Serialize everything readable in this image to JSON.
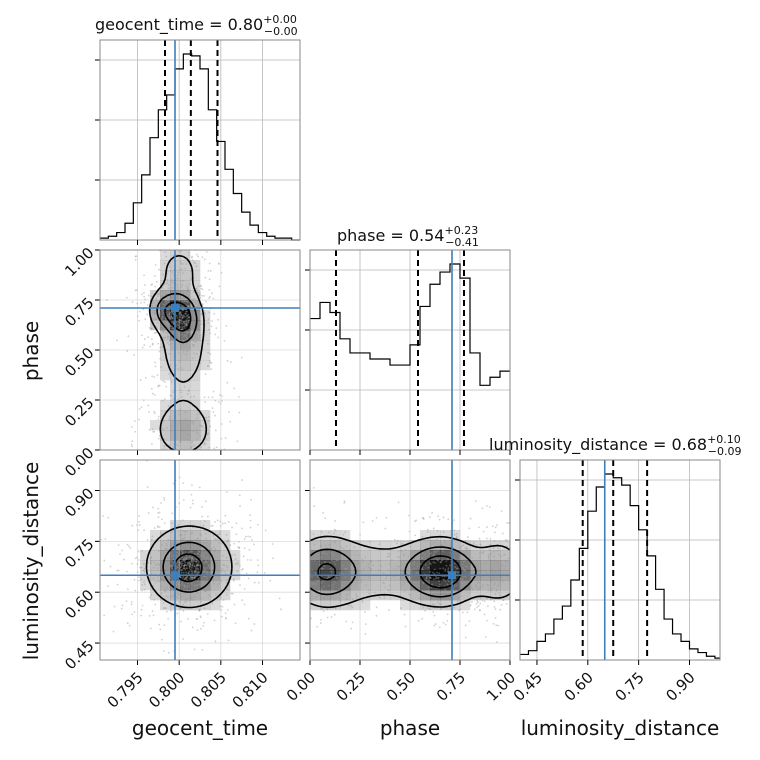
{
  "chart_data": {
    "type": "corner",
    "parameters": [
      "geocent_time",
      "phase",
      "luminosity_distance"
    ],
    "truths": {
      "geocent_time": 0.7995,
      "phase": 0.71,
      "luminosity_distance": 0.65
    },
    "titles": [
      {
        "name": "geocent_time",
        "value": "0.80",
        "upper": "+0.00",
        "lower": "−0.00"
      },
      {
        "name": "phase",
        "value": "0.54",
        "upper": "+0.23",
        "lower": "−0.41"
      },
      {
        "name": "luminosity_distance",
        "value": "0.68",
        "upper": "+0.10",
        "lower": "−0.09"
      }
    ],
    "axes": {
      "geocent_time": {
        "range": [
          0.7905,
          0.8145
        ],
        "ticks": [
          "0.795",
          "0.800",
          "0.805",
          "0.810"
        ]
      },
      "phase": {
        "range": [
          0.0,
          1.0
        ],
        "ticks": [
          "0.00",
          "0.25",
          "0.50",
          "0.75",
          "1.00"
        ]
      },
      "luminosity_distance": {
        "range": [
          0.4,
          0.99
        ],
        "ticks": [
          "0.45",
          "0.60",
          "0.75",
          "0.90"
        ]
      }
    },
    "marginals": {
      "geocent_time": {
        "edges": [
          0.7905,
          0.7915,
          0.7925,
          0.7935,
          0.7945,
          0.7955,
          0.7965,
          0.7975,
          0.7985,
          0.7995,
          0.8005,
          0.8015,
          0.8025,
          0.8035,
          0.8045,
          0.8055,
          0.8065,
          0.8075,
          0.8085,
          0.8095,
          0.8105,
          0.8115,
          0.8125,
          0.8135,
          0.8145
        ],
        "counts": [
          0.01,
          0.02,
          0.04,
          0.09,
          0.2,
          0.35,
          0.55,
          0.7,
          0.78,
          0.92,
          1.0,
          0.99,
          0.92,
          0.7,
          0.53,
          0.38,
          0.25,
          0.15,
          0.08,
          0.04,
          0.02,
          0.01,
          0.01,
          0.0
        ],
        "quantiles": [
          0.7983,
          0.8014,
          0.8046
        ]
      },
      "phase": {
        "edges": [
          0.0,
          0.05,
          0.1,
          0.15,
          0.2,
          0.25,
          0.3,
          0.35,
          0.4,
          0.45,
          0.5,
          0.55,
          0.6,
          0.65,
          0.7,
          0.75,
          0.8,
          0.85,
          0.9,
          0.95,
          1.0
        ],
        "counts": [
          0.65,
          0.73,
          0.68,
          0.55,
          0.48,
          0.48,
          0.45,
          0.45,
          0.42,
          0.42,
          0.52,
          0.71,
          0.82,
          0.88,
          0.92,
          0.85,
          0.48,
          0.32,
          0.36,
          0.39
        ],
        "quantiles": [
          0.13,
          0.54,
          0.77
        ]
      },
      "luminosity_distance": {
        "edges": [
          0.4,
          0.425,
          0.45,
          0.475,
          0.5,
          0.525,
          0.55,
          0.575,
          0.6,
          0.625,
          0.65,
          0.675,
          0.7,
          0.725,
          0.75,
          0.775,
          0.8,
          0.825,
          0.85,
          0.875,
          0.9,
          0.925,
          0.95,
          0.975,
          0.99
        ],
        "counts": [
          0.03,
          0.05,
          0.1,
          0.14,
          0.22,
          0.29,
          0.43,
          0.6,
          0.8,
          0.93,
          1.0,
          0.98,
          0.94,
          0.83,
          0.7,
          0.56,
          0.38,
          0.22,
          0.14,
          0.1,
          0.06,
          0.04,
          0.02,
          0.01
        ],
        "quantiles": [
          0.585,
          0.675,
          0.775
        ]
      }
    },
    "joint": [
      {
        "x_param": "geocent_time",
        "y_param": "phase",
        "blobs": [
          {
            "x": 0.7985,
            "y": 0.7,
            "sx": 0.0013,
            "sy": 0.06,
            "w": 1.0
          },
          {
            "x": 0.8005,
            "y": 0.66,
            "sx": 0.0012,
            "sy": 0.07,
            "w": 1.3
          },
          {
            "x": 0.8005,
            "y": 0.5,
            "sx": 0.0022,
            "sy": 0.16,
            "w": 0.55
          },
          {
            "x": 0.8005,
            "y": 0.1,
            "sx": 0.0022,
            "sy": 0.09,
            "w": 0.75
          },
          {
            "x": 0.8,
            "y": 0.9,
            "sx": 0.002,
            "sy": 0.1,
            "w": 0.45
          }
        ]
      },
      {
        "x_param": "geocent_time",
        "y_param": "luminosity_distance",
        "blobs": [
          {
            "x": 0.8012,
            "y": 0.675,
            "sx": 0.0032,
            "sy": 0.075,
            "w": 1.0
          },
          {
            "x": 0.801,
            "y": 0.67,
            "sx": 0.0012,
            "sy": 0.03,
            "w": 0.55
          }
        ]
      },
      {
        "x_param": "phase",
        "y_param": "luminosity_distance",
        "blobs": [
          {
            "x": 0.66,
            "y": 0.66,
            "sx": 0.11,
            "sy": 0.055,
            "w": 1.25
          },
          {
            "x": 0.07,
            "y": 0.66,
            "sx": 0.1,
            "sy": 0.06,
            "w": 0.85
          },
          {
            "x": 0.32,
            "y": 0.66,
            "sx": 0.18,
            "sy": 0.07,
            "w": 0.35
          },
          {
            "x": 0.95,
            "y": 0.66,
            "sx": 0.08,
            "sy": 0.06,
            "w": 0.5
          }
        ]
      }
    ],
    "colors": {
      "truth": "#3d7fbd",
      "lines": "#000000",
      "grid": "#b8b8b8",
      "density": "#000000"
    }
  }
}
